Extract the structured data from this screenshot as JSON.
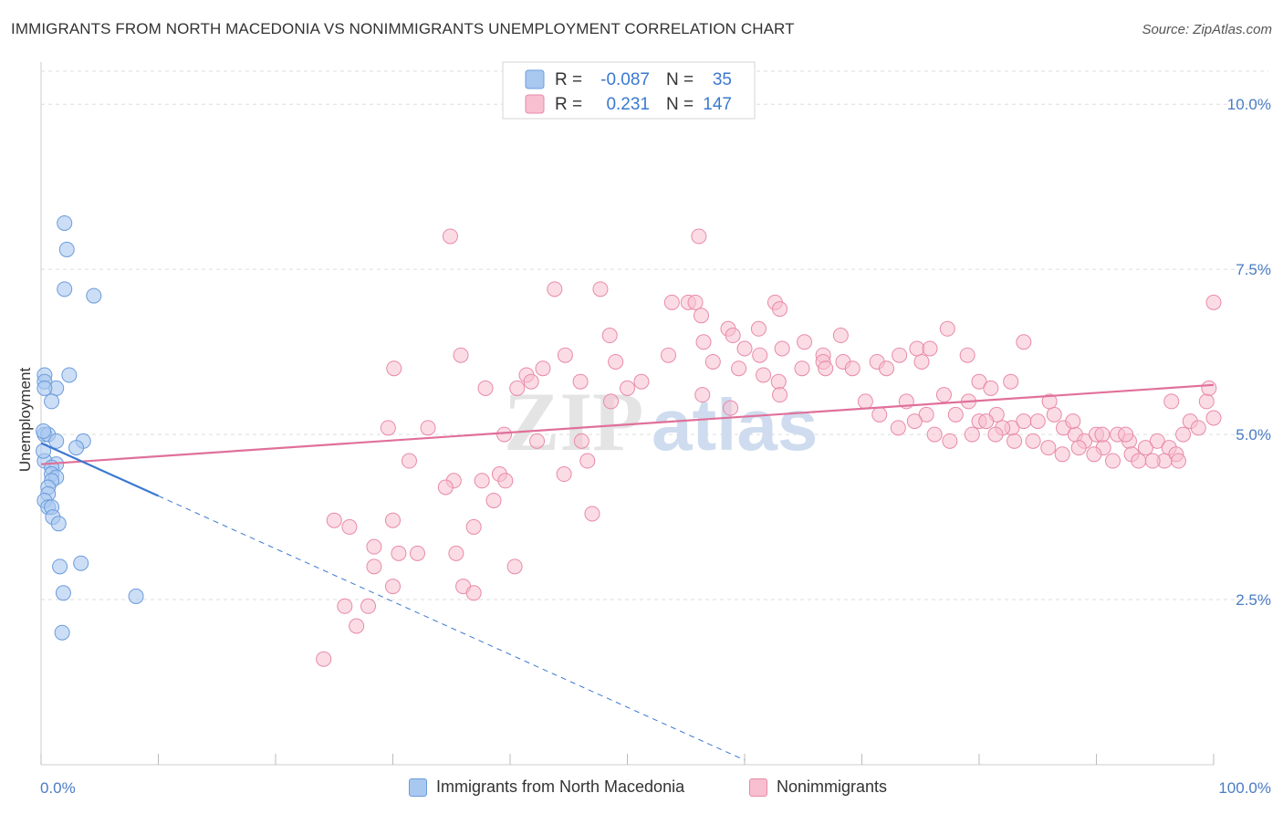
{
  "title": "IMMIGRANTS FROM NORTH MACEDONIA VS NONIMMIGRANTS UNEMPLOYMENT CORRELATION CHART",
  "source": "Source: ZipAtlas.com",
  "watermark": {
    "left": "ZIP",
    "right": "atlas"
  },
  "colors": {
    "blue_fill": "#a9c8f0",
    "blue_stroke": "#6c9bdc",
    "blue_line": "#3a78d0",
    "pink_fill": "#f7bfd0",
    "pink_stroke": "#e88aaa",
    "pink_line": "#e0709a",
    "grid": "#dddddd",
    "axis_label": "#4a7cc4"
  },
  "legend": {
    "rows": [
      {
        "r_label": "R =",
        "r_value": "-0.087",
        "n_label": "N =",
        "n_value": "35"
      },
      {
        "r_label": "R =",
        "r_value": "0.231",
        "n_label": "N =",
        "n_value": "147"
      }
    ]
  },
  "chart_data": {
    "type": "scatter",
    "ylabel": "Unemployment",
    "xlim": [
      0,
      100
    ],
    "ylim": [
      0,
      10.5
    ],
    "x_tick_labels": [
      "0.0%",
      "100.0%"
    ],
    "y_ticks": [
      {
        "value": 2.5,
        "label": "2.5%"
      },
      {
        "value": 5.0,
        "label": "5.0%"
      },
      {
        "value": 7.5,
        "label": "7.5%"
      },
      {
        "value": 10.0,
        "label": "10.0%"
      }
    ],
    "grid": true,
    "legend_position": "top-center",
    "series": [
      {
        "name": "Immigrants from North Macedonia",
        "color": "blue",
        "trend": {
          "x0": 0,
          "y0": 4.87,
          "x_solid_end": 10,
          "y_solid_end": 4.07,
          "x_dash_end": 60,
          "y_dash_end": 0.07
        },
        "points": [
          [
            2.0,
            8.2
          ],
          [
            2.2,
            7.8
          ],
          [
            2.0,
            7.2
          ],
          [
            4.5,
            7.1
          ],
          [
            0.3,
            5.9
          ],
          [
            0.3,
            5.8
          ],
          [
            2.4,
            5.9
          ],
          [
            1.3,
            5.7
          ],
          [
            0.3,
            5.7
          ],
          [
            0.9,
            5.5
          ],
          [
            0.3,
            5.0
          ],
          [
            0.6,
            5.0
          ],
          [
            1.3,
            4.9
          ],
          [
            3.6,
            4.9
          ],
          [
            3.0,
            4.8
          ],
          [
            0.3,
            4.6
          ],
          [
            1.3,
            4.55
          ],
          [
            0.9,
            4.5
          ],
          [
            0.9,
            4.4
          ],
          [
            1.3,
            4.35
          ],
          [
            0.9,
            4.3
          ],
          [
            0.6,
            4.2
          ],
          [
            0.6,
            4.1
          ],
          [
            0.3,
            4.0
          ],
          [
            0.6,
            3.9
          ],
          [
            0.9,
            3.9
          ],
          [
            1.0,
            3.75
          ],
          [
            1.5,
            3.65
          ],
          [
            1.6,
            3.0
          ],
          [
            3.4,
            3.05
          ],
          [
            1.9,
            2.6
          ],
          [
            8.1,
            2.55
          ],
          [
            1.8,
            2.0
          ],
          [
            0.2,
            4.75
          ],
          [
            0.2,
            5.05
          ]
        ]
      },
      {
        "name": "Nonimmigrants",
        "color": "pink",
        "trend": {
          "x0": 0,
          "y0": 4.55,
          "x1": 100,
          "y1": 5.75
        },
        "points": [
          [
            34.9,
            8.0
          ],
          [
            56.1,
            8.0
          ],
          [
            43.8,
            7.2
          ],
          [
            47.7,
            7.2
          ],
          [
            53.8,
            7.0
          ],
          [
            55.2,
            7.0
          ],
          [
            55.8,
            7.0
          ],
          [
            56.3,
            6.8
          ],
          [
            62.6,
            7.0
          ],
          [
            63.0,
            6.9
          ],
          [
            100,
            7.0
          ],
          [
            58.6,
            6.6
          ],
          [
            61.2,
            6.6
          ],
          [
            48.5,
            6.5
          ],
          [
            56.5,
            6.4
          ],
          [
            59.0,
            6.5
          ],
          [
            60.0,
            6.3
          ],
          [
            61.3,
            6.2
          ],
          [
            63.2,
            6.3
          ],
          [
            68.2,
            6.5
          ],
          [
            65.1,
            6.4
          ],
          [
            66.7,
            6.2
          ],
          [
            66.7,
            6.1
          ],
          [
            68.4,
            6.1
          ],
          [
            69.2,
            6.0
          ],
          [
            71.3,
            6.1
          ],
          [
            72.1,
            6.0
          ],
          [
            73.2,
            6.2
          ],
          [
            74.7,
            6.3
          ],
          [
            75.1,
            6.1
          ],
          [
            75.8,
            6.3
          ],
          [
            77.3,
            6.6
          ],
          [
            79.0,
            6.2
          ],
          [
            80.0,
            5.8
          ],
          [
            81.0,
            5.7
          ],
          [
            82.7,
            5.8
          ],
          [
            83.8,
            6.4
          ],
          [
            35.8,
            6.2
          ],
          [
            30.1,
            6.0
          ],
          [
            42.8,
            6.0
          ],
          [
            41.4,
            5.9
          ],
          [
            44.7,
            6.2
          ],
          [
            46.0,
            5.8
          ],
          [
            49.0,
            6.1
          ],
          [
            51.2,
            5.8
          ],
          [
            53.5,
            6.2
          ],
          [
            57.3,
            6.1
          ],
          [
            59.5,
            6.0
          ],
          [
            61.6,
            5.9
          ],
          [
            62.9,
            5.8
          ],
          [
            64.9,
            6.0
          ],
          [
            66.9,
            6.0
          ],
          [
            37.9,
            5.7
          ],
          [
            40.6,
            5.7
          ],
          [
            50.0,
            5.7
          ],
          [
            56.4,
            5.6
          ],
          [
            58.8,
            5.4
          ],
          [
            63.0,
            5.6
          ],
          [
            70.3,
            5.5
          ],
          [
            71.5,
            5.3
          ],
          [
            73.8,
            5.5
          ],
          [
            75.5,
            5.3
          ],
          [
            77.0,
            5.6
          ],
          [
            78.0,
            5.3
          ],
          [
            79.1,
            5.5
          ],
          [
            80.0,
            5.2
          ],
          [
            81.5,
            5.3
          ],
          [
            82.8,
            5.1
          ],
          [
            83.8,
            5.2
          ],
          [
            85.0,
            5.2
          ],
          [
            86.4,
            5.3
          ],
          [
            87.2,
            5.1
          ],
          [
            88.2,
            5.0
          ],
          [
            89.0,
            4.9
          ],
          [
            90.0,
            5.0
          ],
          [
            90.6,
            4.8
          ],
          [
            91.8,
            5.0
          ],
          [
            92.8,
            4.9
          ],
          [
            93.0,
            4.7
          ],
          [
            94.2,
            4.8
          ],
          [
            95.2,
            4.9
          ],
          [
            96.2,
            4.8
          ],
          [
            96.8,
            4.7
          ],
          [
            97.4,
            5.0
          ],
          [
            98.0,
            5.2
          ],
          [
            98.7,
            5.1
          ],
          [
            99.4,
            5.5
          ],
          [
            100,
            5.25
          ],
          [
            97.0,
            4.6
          ],
          [
            95.8,
            4.6
          ],
          [
            94.8,
            4.6
          ],
          [
            93.6,
            4.6
          ],
          [
            91.4,
            4.6
          ],
          [
            89.8,
            4.7
          ],
          [
            88.5,
            4.8
          ],
          [
            87.1,
            4.7
          ],
          [
            85.9,
            4.8
          ],
          [
            84.6,
            4.9
          ],
          [
            83.0,
            4.9
          ],
          [
            82.0,
            5.1
          ],
          [
            81.4,
            5.0
          ],
          [
            80.6,
            5.2
          ],
          [
            79.4,
            5.0
          ],
          [
            77.5,
            4.9
          ],
          [
            76.2,
            5.0
          ],
          [
            74.5,
            5.2
          ],
          [
            73.1,
            5.1
          ],
          [
            99.6,
            5.7
          ],
          [
            96.4,
            5.5
          ],
          [
            92.5,
            5.0
          ],
          [
            90.5,
            5.0
          ],
          [
            88.0,
            5.2
          ],
          [
            86.0,
            5.5
          ],
          [
            35.2,
            4.3
          ],
          [
            37.6,
            4.3
          ],
          [
            38.6,
            4.0
          ],
          [
            39.1,
            4.4
          ],
          [
            46.1,
            4.9
          ],
          [
            44.6,
            4.4
          ],
          [
            46.6,
            4.6
          ],
          [
            42.3,
            4.9
          ],
          [
            29.6,
            5.1
          ],
          [
            31.4,
            4.6
          ],
          [
            26.3,
            3.6
          ],
          [
            25.0,
            3.7
          ],
          [
            28.4,
            3.3
          ],
          [
            30.0,
            3.7
          ],
          [
            30.5,
            3.2
          ],
          [
            32.1,
            3.2
          ],
          [
            35.4,
            3.2
          ],
          [
            36.0,
            2.7
          ],
          [
            36.9,
            2.6
          ],
          [
            30.0,
            2.7
          ],
          [
            26.9,
            2.1
          ],
          [
            25.9,
            2.4
          ],
          [
            24.1,
            1.6
          ],
          [
            28.4,
            3.0
          ],
          [
            40.4,
            3.0
          ],
          [
            27.9,
            2.4
          ],
          [
            47.0,
            3.8
          ],
          [
            36.9,
            3.6
          ],
          [
            39.6,
            4.3
          ],
          [
            34.5,
            4.2
          ],
          [
            39.5,
            5.0
          ],
          [
            33.0,
            5.1
          ],
          [
            41.8,
            5.8
          ],
          [
            48.6,
            5.5
          ]
        ]
      }
    ]
  }
}
